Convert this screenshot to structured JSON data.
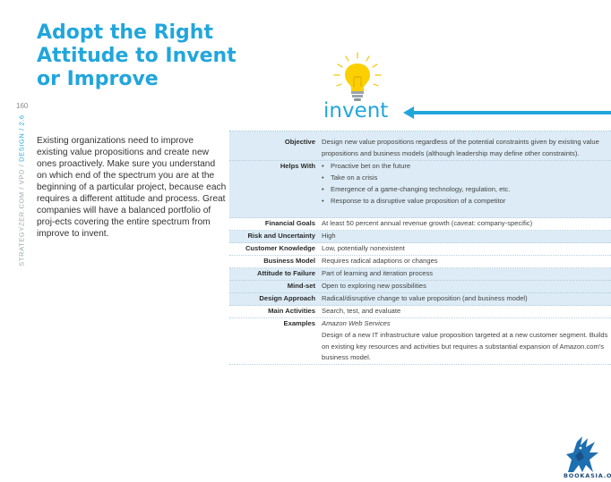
{
  "title": "Adopt the Right Attitude to Invent or Improve",
  "page_number": "160",
  "side_label": {
    "site": "STRATEGYZER.COM / VPD / ",
    "section": "DESIGN / 2.6"
  },
  "intro_text": "Existing organizations need to improve existing value propositions and create new ones proactively. Make sure you understand on which end of the spectrum you are at the beginning of a particular project, because each requires a different attitude and process. Great companies will have a balanced portfolio of proj-ects covering the entire spectrum from improve to invent.",
  "header": {
    "label": "invent",
    "accent_color": "#21a6dc",
    "icon": "lightbulb-icon"
  },
  "rows": {
    "objective": {
      "label": "Objective",
      "value": "Design new value propositions regardless of the potential constraints given by existing value propositions and business models (although leadership may define other constraints)."
    },
    "helps_with": {
      "label": "Helps With",
      "items": [
        "Proactive bet on the future",
        "Take on a crisis",
        "Emergence of a game-changing technology, regulation, etc.",
        "Response to a disruptive value proposition of a competitor"
      ]
    },
    "financial_goals": {
      "label": "Financial Goals",
      "value": "At least 50 percent annual revenue growth (caveat: company-specific)"
    },
    "risk": {
      "label": "Risk and Uncertainty",
      "value": "High"
    },
    "customer_knowledge": {
      "label": "Customer Knowledge",
      "value": "Low, potentially nonexistent"
    },
    "business_model": {
      "label": "Business Model",
      "value": "Requires radical adaptions or changes"
    },
    "attitude_to_failure": {
      "label": "Attitude to Failure",
      "value": "Part of learning and iteration process"
    },
    "mindset": {
      "label": "Mind-set",
      "value": "Open to exploring new possibilities"
    },
    "design_approach": {
      "label": "Design Approach",
      "value": "Radical/disruptive change to value proposition (and business model)"
    },
    "main_activities": {
      "label": "Main Activities",
      "value": "Search, test, and evaluate"
    },
    "examples": {
      "label": "Examples",
      "company": "Amazon Web Services",
      "value": "Design of a new IT infrastructure value proposition targeted at a new customer segment. Builds on existing key resources and activities but requires a substantial expansion of Amazon.com's business model."
    }
  },
  "watermark": "BOOKASIA.ORG"
}
